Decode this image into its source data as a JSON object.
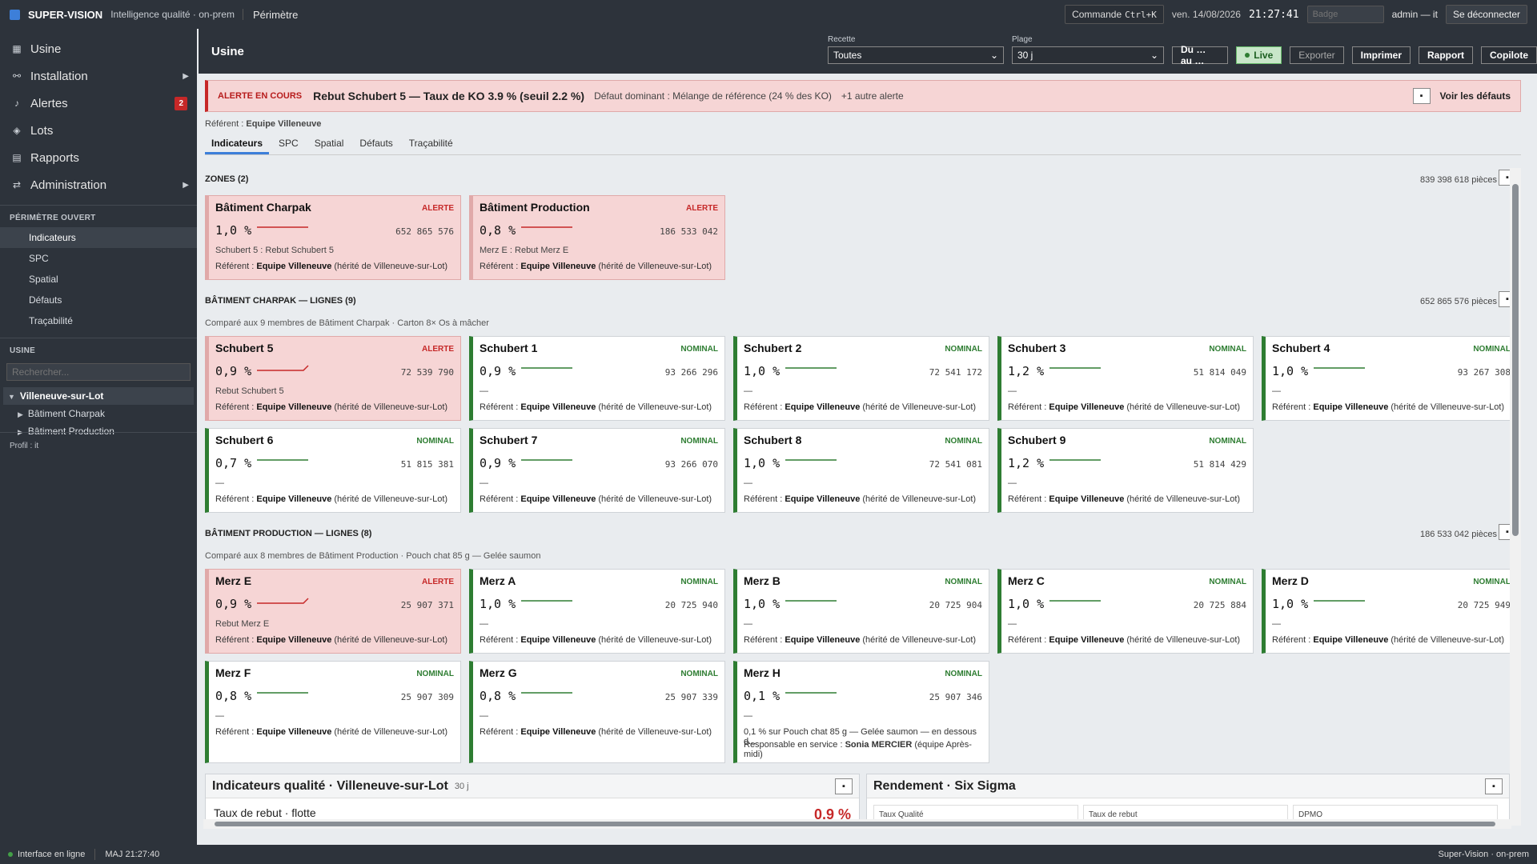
{
  "topbar": {
    "brand": "SUPER-VISION",
    "tagline": "Intelligence qualité · on-prem",
    "perimetre": "Périmètre",
    "command_label": "Commande",
    "command_kbd": "Ctrl+K",
    "date": "ven. 14/08/2026",
    "clock": "21:27:41",
    "badge_placeholder": "Badge",
    "user": "admin — it",
    "logout": "Se déconnecter"
  },
  "sidebar": {
    "nav": [
      {
        "label": "Usine",
        "icon": "grid-icon"
      },
      {
        "label": "Installation",
        "icon": "nodes-icon"
      },
      {
        "label": "Alertes",
        "icon": "bell-icon",
        "count": "2"
      },
      {
        "label": "Lots",
        "icon": "layers-icon"
      },
      {
        "label": "Rapports",
        "icon": "document-icon"
      },
      {
        "label": "Administration",
        "icon": "sliders-icon"
      }
    ],
    "perimetre_heading": "PÉRIMÈTRE OUVERT",
    "perimetre_items": [
      "Indicateurs",
      "SPC",
      "Spatial",
      "Défauts",
      "Traçabilité"
    ],
    "usine_heading": "USINE",
    "search_placeholder": "Rechercher...",
    "tree_root": "Villeneuve-sur-Lot",
    "tree_children": [
      "Bâtiment Charpak",
      "Bâtiment Production"
    ],
    "profil": "Profil : it"
  },
  "header": {
    "title": "Usine",
    "recette_label": "Recette",
    "recette_value": "Toutes",
    "plage_label": "Plage",
    "plage_value": "30 j",
    "range_button": "Du … au …",
    "live": "Live",
    "export": "Exporter",
    "print": "Imprimer",
    "report": "Rapport",
    "copilot": "Copilote"
  },
  "alert": {
    "label": "ALERTE EN COURS",
    "title": "Rebut Schubert 5 — Taux de KO 3.9 % (seuil 2.2 %)",
    "sub": "Défaut dominant : Mélange de référence (24 % des KO)",
    "more": "+1 autre alerte",
    "link": "Voir les défauts"
  },
  "referent_line": {
    "label": "Référent :",
    "value": "Equipe Villeneuve"
  },
  "tabs": [
    "Indicateurs",
    "SPC",
    "Spatial",
    "Défauts",
    "Traçabilité"
  ],
  "colors": {
    "alert": "#c62828",
    "nominal": "#2e7d32",
    "accent": "#3d7fd9"
  },
  "sections": {
    "zones": {
      "title": "ZONES (2)",
      "count": "839 398 618 pièces"
    },
    "charpak": {
      "title": "BÂTIMENT CHARPAK — LIGNES (9)",
      "count": "652 865 576 pièces",
      "sub": "Comparé aux 9 membres de Bâtiment Charpak · Carton 8× Os à mâcher"
    },
    "production": {
      "title": "BÂTIMENT PRODUCTION — LIGNES (8)",
      "count": "186 533 042 pièces",
      "sub": "Comparé aux 8 membres de Bâtiment Production · Pouch chat 85 g — Gelée saumon"
    }
  },
  "ref_label": "Référent :",
  "ref_team": "Equipe Villeneuve",
  "ref_suffix": "(hérité de Villeneuve-sur-Lot)",
  "cards": [
    {
      "name": "Bâtiment Charpak",
      "status": "ALERTE",
      "rate": "1,0 %",
      "count": "652 865 576",
      "note": "Schubert 5 : Rebut Schubert 5"
    },
    {
      "name": "Bâtiment Production",
      "status": "ALERTE",
      "rate": "0,8 %",
      "count": "186 533 042",
      "note": "Merz E : Rebut Merz E"
    },
    {
      "name": "Schubert 5",
      "status": "ALERTE",
      "rate": "0,9 %",
      "count": "72 539 790",
      "note": "Rebut Schubert 5"
    },
    {
      "name": "Schubert 1",
      "status": "NOMINAL",
      "rate": "0,9 %",
      "count": "93 266 296",
      "note": "—"
    },
    {
      "name": "Schubert 2",
      "status": "NOMINAL",
      "rate": "1,0 %",
      "count": "72 541 172",
      "note": "—"
    },
    {
      "name": "Schubert 3",
      "status": "NOMINAL",
      "rate": "1,2 %",
      "count": "51 814 049",
      "note": "—"
    },
    {
      "name": "Schubert 4",
      "status": "NOMINAL",
      "rate": "1,0 %",
      "count": "93 267 308",
      "note": "—"
    },
    {
      "name": "Schubert 6",
      "status": "NOMINAL",
      "rate": "0,7 %",
      "count": "51 815 381",
      "note": "—"
    },
    {
      "name": "Schubert 7",
      "status": "NOMINAL",
      "rate": "0,9 %",
      "count": "93 266 070",
      "note": "—"
    },
    {
      "name": "Schubert 8",
      "status": "NOMINAL",
      "rate": "1,0 %",
      "count": "72 541 081",
      "note": "—"
    },
    {
      "name": "Schubert 9",
      "status": "NOMINAL",
      "rate": "1,2 %",
      "count": "51 814 429",
      "note": "—"
    },
    {
      "name": "Merz E",
      "status": "ALERTE",
      "rate": "0,9 %",
      "count": "25 907 371",
      "note": "Rebut Merz E"
    },
    {
      "name": "Merz A",
      "status": "NOMINAL",
      "rate": "1,0 %",
      "count": "20 725 940",
      "note": "—"
    },
    {
      "name": "Merz B",
      "status": "NOMINAL",
      "rate": "1,0 %",
      "count": "20 725 904",
      "note": "—"
    },
    {
      "name": "Merz C",
      "status": "NOMINAL",
      "rate": "1,0 %",
      "count": "20 725 884",
      "note": "—"
    },
    {
      "name": "Merz D",
      "status": "NOMINAL",
      "rate": "1,0 %",
      "count": "20 725 949",
      "note": "—"
    },
    {
      "name": "Merz F",
      "status": "NOMINAL",
      "rate": "0,8 %",
      "count": "25 907 309",
      "note": "—"
    },
    {
      "name": "Merz G",
      "status": "NOMINAL",
      "rate": "0,8 %",
      "count": "25 907 339",
      "note": "—"
    },
    {
      "name": "Merz H",
      "status": "NOMINAL",
      "rate": "0,1 %",
      "count": "25 907 346",
      "note": "—",
      "extra": "0,1 % sur Pouch chat 85 g — Gelée saumon — en dessous d...",
      "resp_label": "Responsable en service :",
      "resp_name": "Sonia MERCIER",
      "resp_team": "(équipe Après-midi)"
    }
  ],
  "panels": {
    "quality": {
      "title": "Indicateurs qualité · Villeneuve-sur-Lot",
      "sub": "30 j",
      "kpi_label": "Taux de rebut · flotte",
      "kpi_value": "0,9 %"
    },
    "yield": {
      "title": "Rendement · Six Sigma",
      "boxes": [
        "Taux Qualité",
        "Taux de rebut",
        "DPMO"
      ]
    }
  },
  "statusbar": {
    "online": "Interface en ligne",
    "update": "MAJ 21:27:40",
    "right": "Super-Vision · on-prem"
  }
}
